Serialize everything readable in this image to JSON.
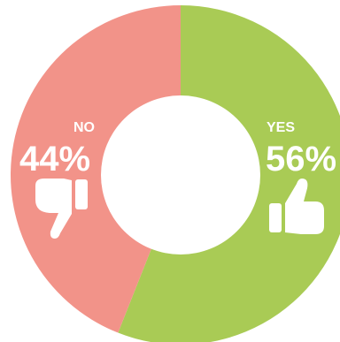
{
  "chart_data": {
    "type": "pie",
    "donut": true,
    "categories": [
      "YES",
      "NO"
    ],
    "values": [
      56,
      44
    ],
    "value_labels": [
      "56%",
      "44%"
    ],
    "colors": [
      "#a9cb55",
      "#f29389"
    ],
    "icons": [
      "thumbs-up-icon",
      "thumbs-down-icon"
    ],
    "legend": "none"
  }
}
